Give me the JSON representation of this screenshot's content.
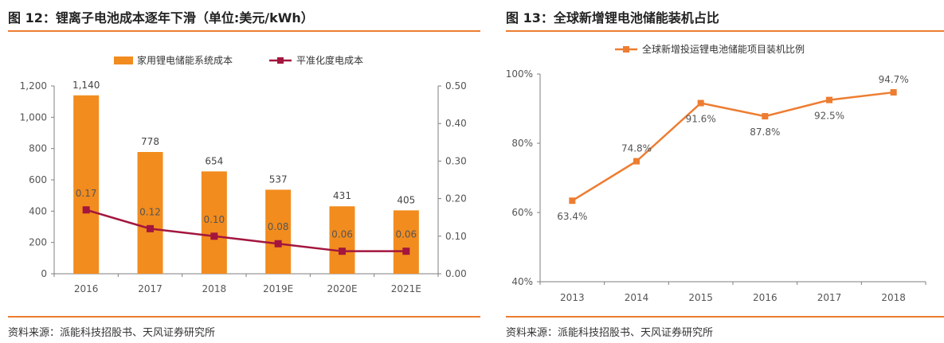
{
  "left": {
    "title": "图 12：锂离子电池成本逐年下滑（单位:美元/kWh）",
    "source": "资料来源：派能科技招股书、天风证券研究所"
  },
  "right": {
    "title": "图 13：全球新增锂电池储能装机占比",
    "source": "资料来源：派能科技招股书、天风证券研究所"
  },
  "colors": {
    "accent": "#ed7d31",
    "bar": "#f28c1e",
    "line": "#a3163e"
  },
  "chart_data": [
    {
      "type": "bar",
      "categories": [
        "2016",
        "2017",
        "2018",
        "2019E",
        "2020E",
        "2021E"
      ],
      "series": [
        {
          "name": "家用锂电储能系统成本",
          "type": "bar",
          "axis": "left",
          "values": [
            1140,
            778,
            654,
            537,
            431,
            405
          ],
          "labels": [
            "1,140",
            "778",
            "654",
            "537",
            "431",
            "405"
          ]
        },
        {
          "name": "平准化度电成本",
          "type": "line",
          "axis": "right",
          "values": [
            0.17,
            0.12,
            0.1,
            0.08,
            0.06,
            0.06
          ],
          "labels": [
            "0.17",
            "0.12",
            "0.10",
            "0.08",
            "0.06",
            "0.06"
          ]
        }
      ],
      "ylim": [
        0,
        1200
      ],
      "yticks": [
        "0",
        "200",
        "400",
        "600",
        "800",
        "1,000",
        "1,200"
      ],
      "y2lim": [
        0,
        0.5
      ],
      "y2ticks": [
        "0.00",
        "0.10",
        "0.20",
        "0.30",
        "0.40",
        "0.50"
      ],
      "legend": "top-center",
      "grid": false
    },
    {
      "type": "line",
      "categories": [
        "2013",
        "2014",
        "2015",
        "2016",
        "2017",
        "2018"
      ],
      "series": [
        {
          "name": "全球新增投运锂电池储能项目装机比例",
          "values": [
            63.4,
            74.8,
            91.6,
            87.8,
            92.5,
            94.7
          ],
          "labels": [
            "63.4%",
            "74.8%",
            "91.6%",
            "87.8%",
            "92.5%",
            "94.7%"
          ]
        }
      ],
      "ylim": [
        40,
        100
      ],
      "yticks": [
        "40%",
        "60%",
        "80%",
        "100%"
      ],
      "legend": "top-center",
      "grid": false
    }
  ]
}
